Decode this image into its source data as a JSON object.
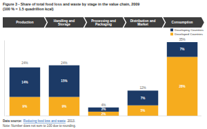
{
  "chart_data": {
    "type": "bar",
    "stacked": true,
    "data_labels": true,
    "tick_labels": "x",
    "title": "Figure 3 - Share of total food loss and waste by stage in the value chain, 2009",
    "subtitle": "(100 % = 1.5 quadrillion kcal)",
    "categories": [
      "Production",
      "Handling and Storage",
      "Processing and Packaging",
      "Distribution and Market",
      "Consumption"
    ],
    "series": [
      {
        "name": "Developing Countries",
        "color": "#1c3a66",
        "values": [
          14,
          15,
          2,
          7,
          7
        ],
        "value_labels": [
          "14%",
          "15%",
          "2%",
          "7%",
          "7%"
        ]
      },
      {
        "name": "Developed Countries",
        "color": "#f6ac1e",
        "values": [
          9,
          9,
          2,
          5,
          28
        ],
        "value_labels": [
          "9%",
          "9%",
          "2%",
          "5%",
          "28%"
        ]
      }
    ],
    "totals": [
      24,
      24,
      4,
      12,
      35
    ],
    "total_labels": [
      "24%",
      "24%",
      "4%",
      "12%",
      "35%"
    ],
    "ylim": [
      0,
      36
    ],
    "yticks": [],
    "legend": "top-right",
    "source": {
      "label": "Data source:",
      "link": "Reducing food loss and waste",
      "suffix": ". 2013."
    },
    "note": "Note: Number does not sum to 100 due to rounding."
  }
}
